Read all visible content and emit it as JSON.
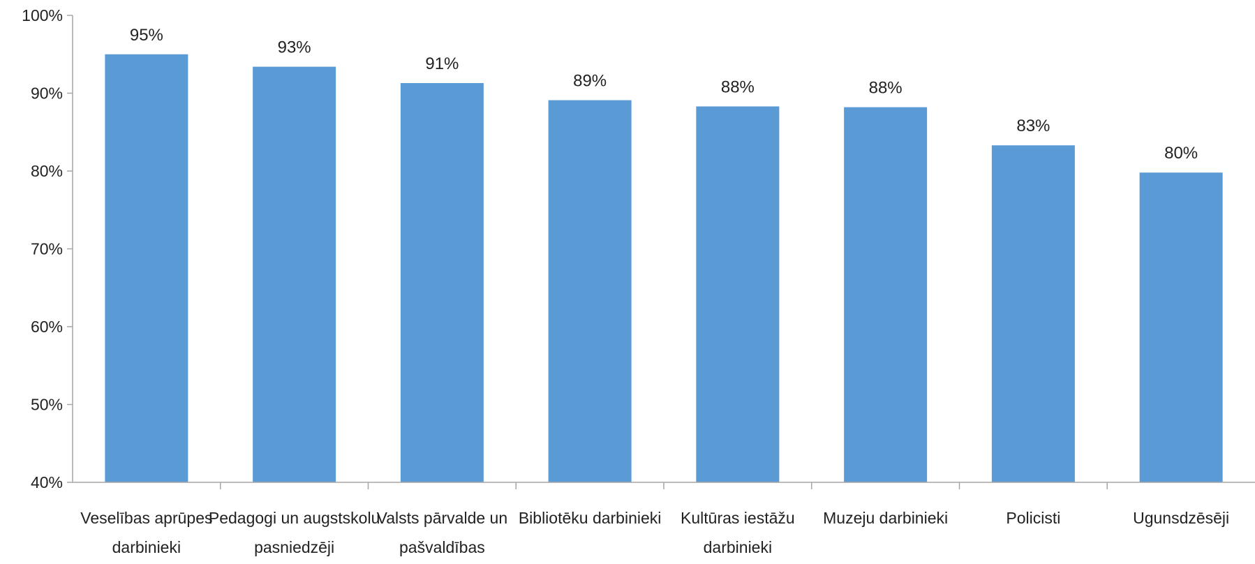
{
  "chart_data": {
    "type": "bar",
    "categories": [
      [
        "Veselības aprūpes",
        "darbinieki"
      ],
      [
        "Pedagogi un augstskolu",
        "pasniedzēji"
      ],
      [
        "Valsts pārvalde un",
        "pašvaldības"
      ],
      [
        "Bibliotēku darbinieki"
      ],
      [
        "Kultūras iestāžu",
        "darbinieki"
      ],
      [
        "Muzeju darbinieki"
      ],
      [
        "Policisti"
      ],
      [
        "Ugunsdzēsēji"
      ]
    ],
    "values": [
      95,
      93.4,
      91.3,
      89.1,
      88.3,
      88.2,
      83.3,
      79.8
    ],
    "data_labels": [
      "95%",
      "93%",
      "91%",
      "89%",
      "88%",
      "88%",
      "83%",
      "80%"
    ],
    "ylim": [
      40,
      100
    ],
    "yticks": [
      40,
      50,
      60,
      70,
      80,
      90,
      100
    ],
    "ytick_labels": [
      "40%",
      "50%",
      "60%",
      "70%",
      "80%",
      "90%",
      "100%"
    ],
    "grid": false,
    "colors": {
      "bar": "#5b9bd5",
      "axis": "#a6a6a6",
      "text": "#222222"
    }
  }
}
